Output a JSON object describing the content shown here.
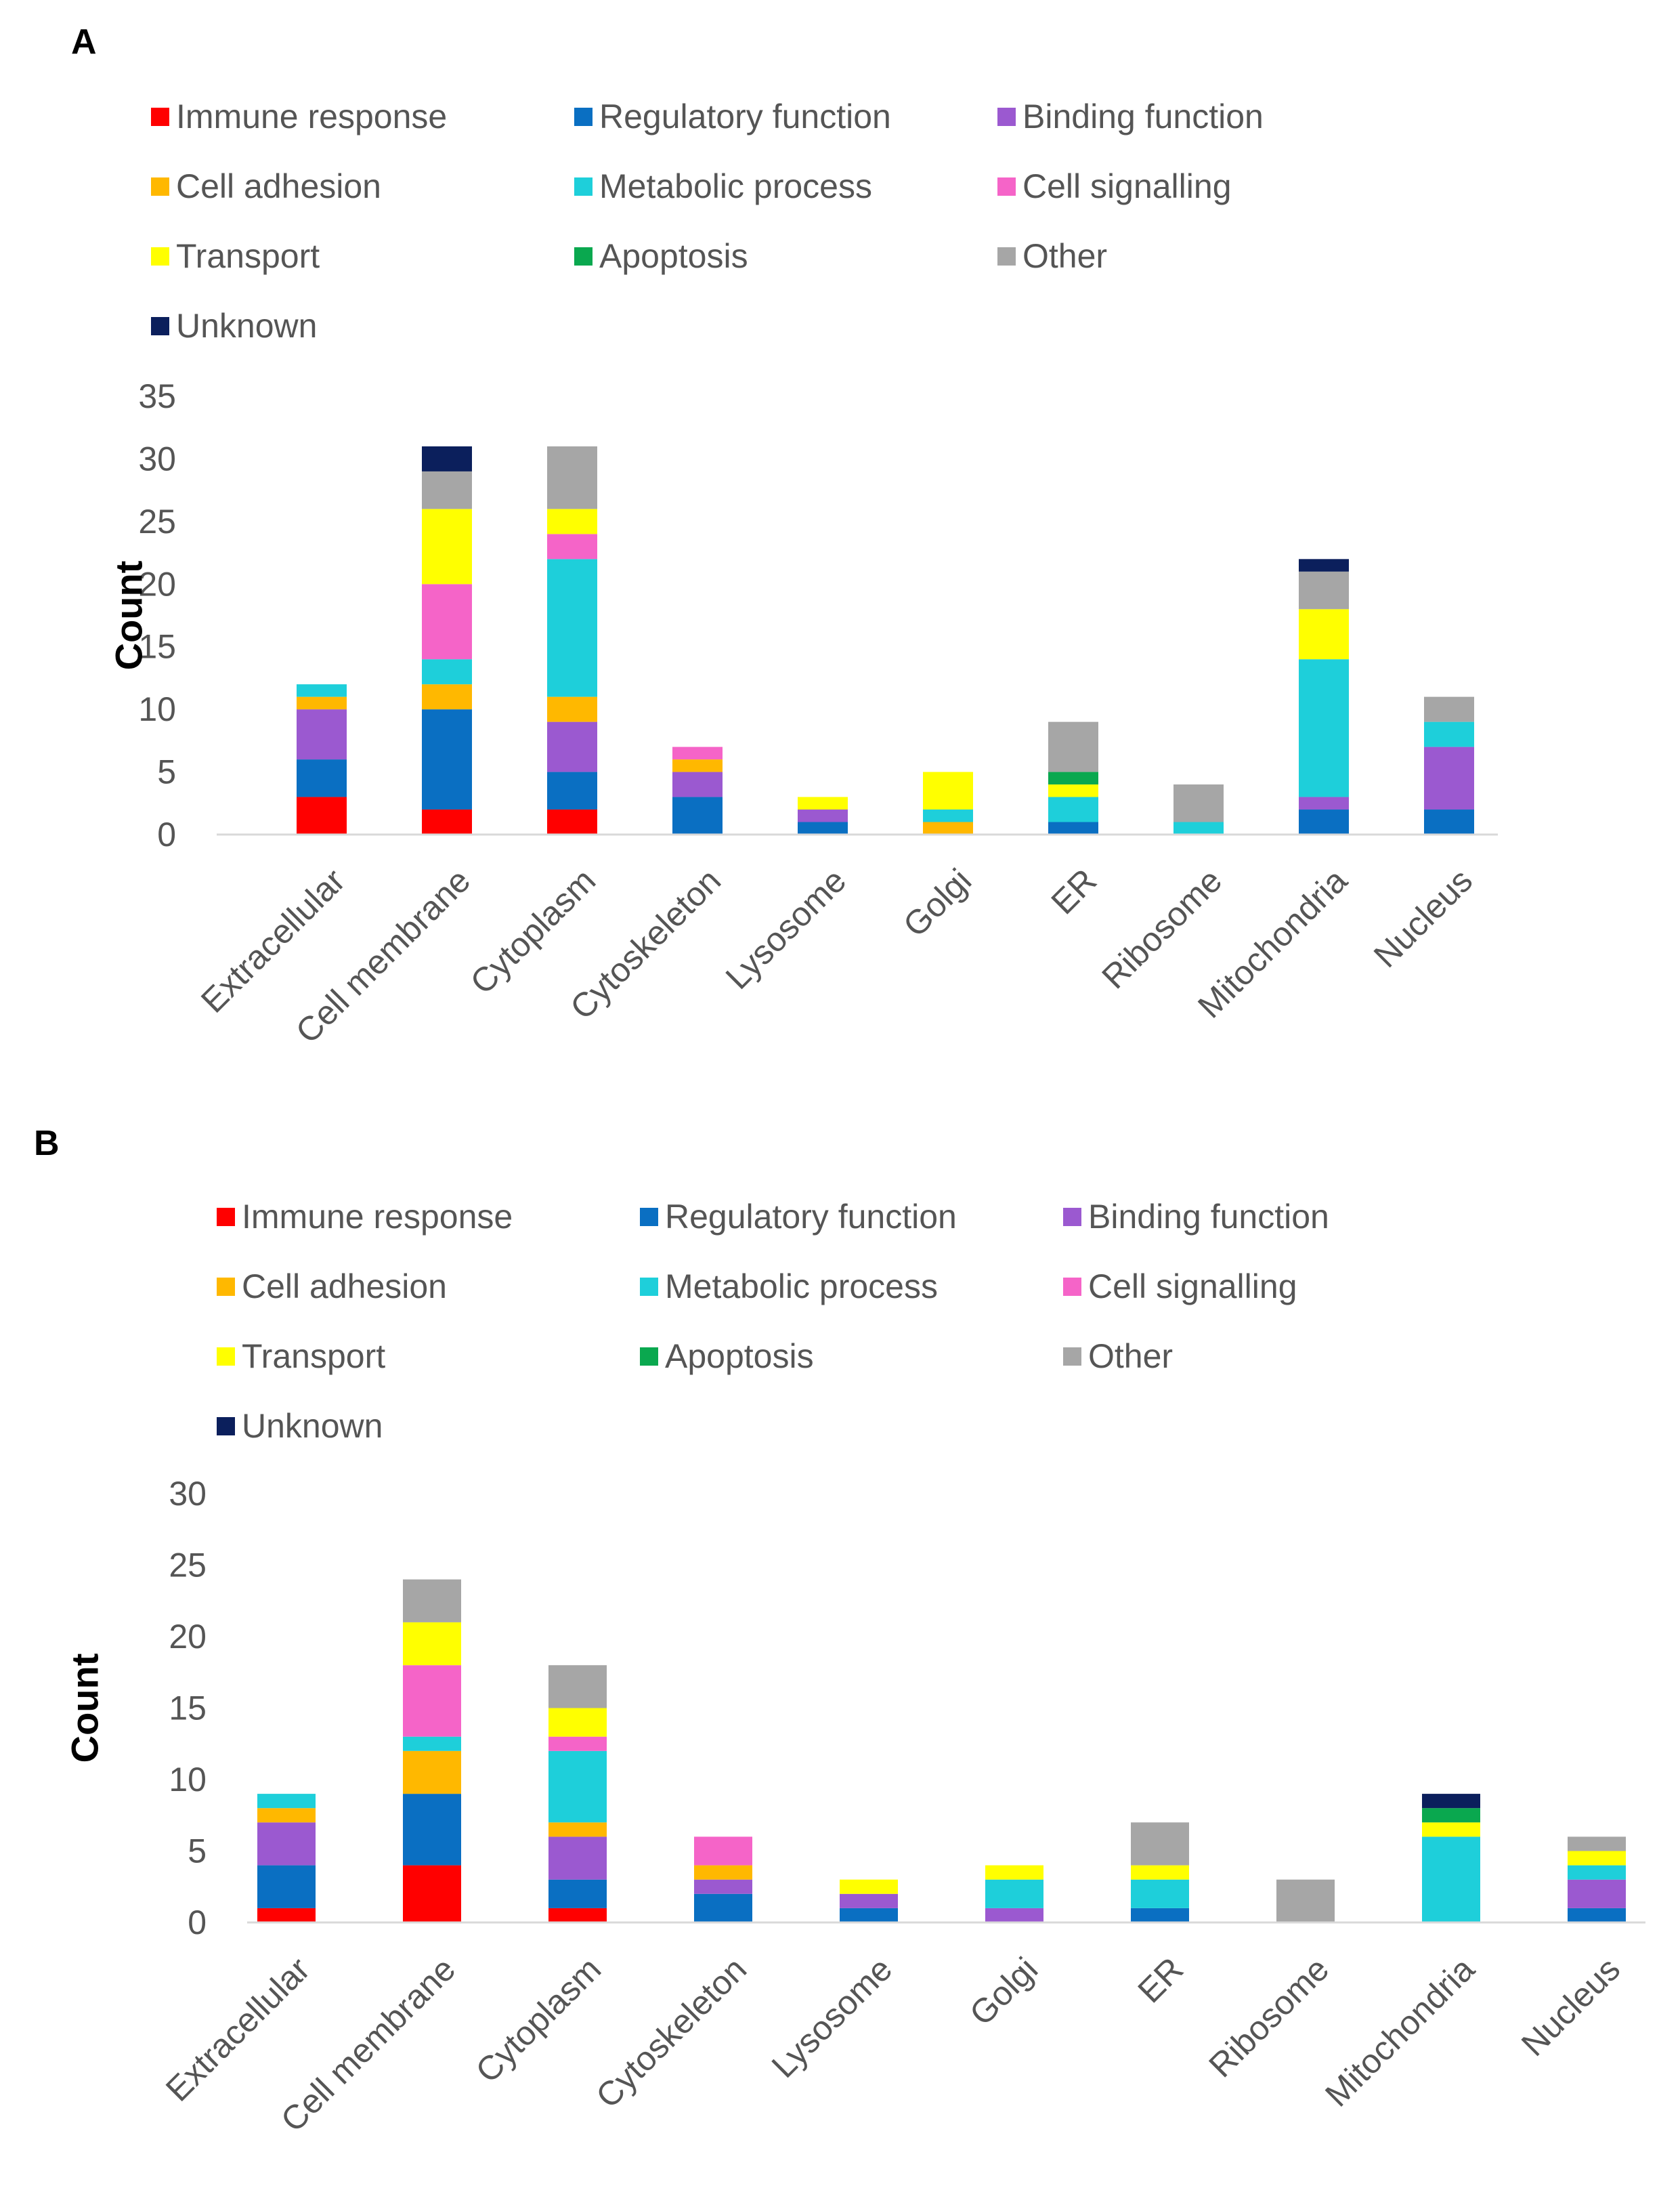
{
  "chart_data": [
    {
      "type": "bar",
      "stacked": true,
      "panel_label": "A",
      "ylabel": "Count",
      "ylim": [
        0,
        35
      ],
      "yticks": [
        0,
        5,
        10,
        15,
        20,
        25,
        30,
        35
      ],
      "categories": [
        "Extracellular",
        "Cell membrane",
        "Cytoplasm",
        "Cytoskeleton",
        "Lysosome",
        "Golgi",
        "ER",
        "Ribosome",
        "Mitochondria",
        "Nucleus"
      ],
      "series": [
        {
          "name": "Immune response",
          "color": "#ff0000",
          "values": [
            3,
            2,
            2,
            0,
            0,
            0,
            0,
            0,
            0,
            0
          ]
        },
        {
          "name": "Regulatory function",
          "color": "#0a6fc2",
          "values": [
            3,
            8,
            3,
            3,
            1,
            0,
            1,
            0,
            2,
            2
          ]
        },
        {
          "name": "Binding function",
          "color": "#9b59d0",
          "values": [
            4,
            0,
            4,
            2,
            1,
            0,
            0,
            0,
            1,
            5
          ]
        },
        {
          "name": "Cell adhesion",
          "color": "#ffb800",
          "values": [
            1,
            2,
            2,
            1,
            0,
            1,
            0,
            0,
            0,
            0
          ]
        },
        {
          "name": "Metabolic process",
          "color": "#1ecfda",
          "values": [
            1,
            2,
            11,
            0,
            0,
            1,
            2,
            1,
            11,
            2
          ]
        },
        {
          "name": "Cell signalling",
          "color": "#f564c8",
          "values": [
            0,
            6,
            2,
            1,
            0,
            0,
            0,
            0,
            0,
            0
          ]
        },
        {
          "name": "Transport",
          "color": "#ffff00",
          "values": [
            0,
            6,
            2,
            0,
            1,
            3,
            1,
            0,
            4,
            0
          ]
        },
        {
          "name": "Apoptosis",
          "color": "#0aa84f",
          "values": [
            0,
            0,
            0,
            0,
            0,
            0,
            1,
            0,
            0,
            0
          ]
        },
        {
          "name": "Other",
          "color": "#a6a6a6",
          "values": [
            0,
            3,
            5,
            0,
            0,
            0,
            4,
            3,
            3,
            2
          ]
        },
        {
          "name": "Unknown",
          "color": "#0b1f5c",
          "values": [
            0,
            2,
            0,
            0,
            0,
            0,
            0,
            0,
            1,
            0
          ]
        }
      ]
    },
    {
      "type": "bar",
      "stacked": true,
      "panel_label": "B",
      "ylabel": "Count",
      "ylim": [
        0,
        30
      ],
      "yticks": [
        0,
        5,
        10,
        15,
        20,
        25,
        30
      ],
      "categories": [
        "Extracellular",
        "Cell membrane",
        "Cytoplasm",
        "Cytoskeleton",
        "Lysosome",
        "Golgi",
        "ER",
        "Ribosome",
        "Mitochondria",
        "Nucleus"
      ],
      "series": [
        {
          "name": "Immune response",
          "color": "#ff0000",
          "values": [
            1,
            4,
            1,
            0,
            0,
            0,
            0,
            0,
            0,
            0
          ]
        },
        {
          "name": "Regulatory function",
          "color": "#0a6fc2",
          "values": [
            3,
            5,
            2,
            2,
            1,
            0,
            1,
            0,
            0,
            1
          ]
        },
        {
          "name": "Binding function",
          "color": "#9b59d0",
          "values": [
            3,
            0,
            3,
            1,
            1,
            1,
            0,
            0,
            0,
            2
          ]
        },
        {
          "name": "Cell adhesion",
          "color": "#ffb800",
          "values": [
            1,
            3,
            1,
            1,
            0,
            0,
            0,
            0,
            0,
            0
          ]
        },
        {
          "name": "Metabolic process",
          "color": "#1ecfda",
          "values": [
            1,
            1,
            5,
            0,
            0,
            2,
            2,
            0,
            6,
            1
          ]
        },
        {
          "name": "Cell signalling",
          "color": "#f564c8",
          "values": [
            0,
            5,
            1,
            2,
            0,
            0,
            0,
            0,
            0,
            0
          ]
        },
        {
          "name": "Transport",
          "color": "#ffff00",
          "values": [
            0,
            3,
            2,
            0,
            1,
            1,
            1,
            0,
            1,
            1
          ]
        },
        {
          "name": "Apoptosis",
          "color": "#0aa84f",
          "values": [
            0,
            0,
            0,
            0,
            0,
            0,
            0,
            0,
            1,
            0
          ]
        },
        {
          "name": "Other",
          "color": "#a6a6a6",
          "values": [
            0,
            3,
            3,
            0,
            0,
            0,
            3,
            3,
            0,
            1
          ]
        },
        {
          "name": "Unknown",
          "color": "#0b1f5c",
          "values": [
            0,
            0,
            0,
            0,
            0,
            0,
            0,
            0,
            1,
            0
          ]
        }
      ]
    }
  ]
}
